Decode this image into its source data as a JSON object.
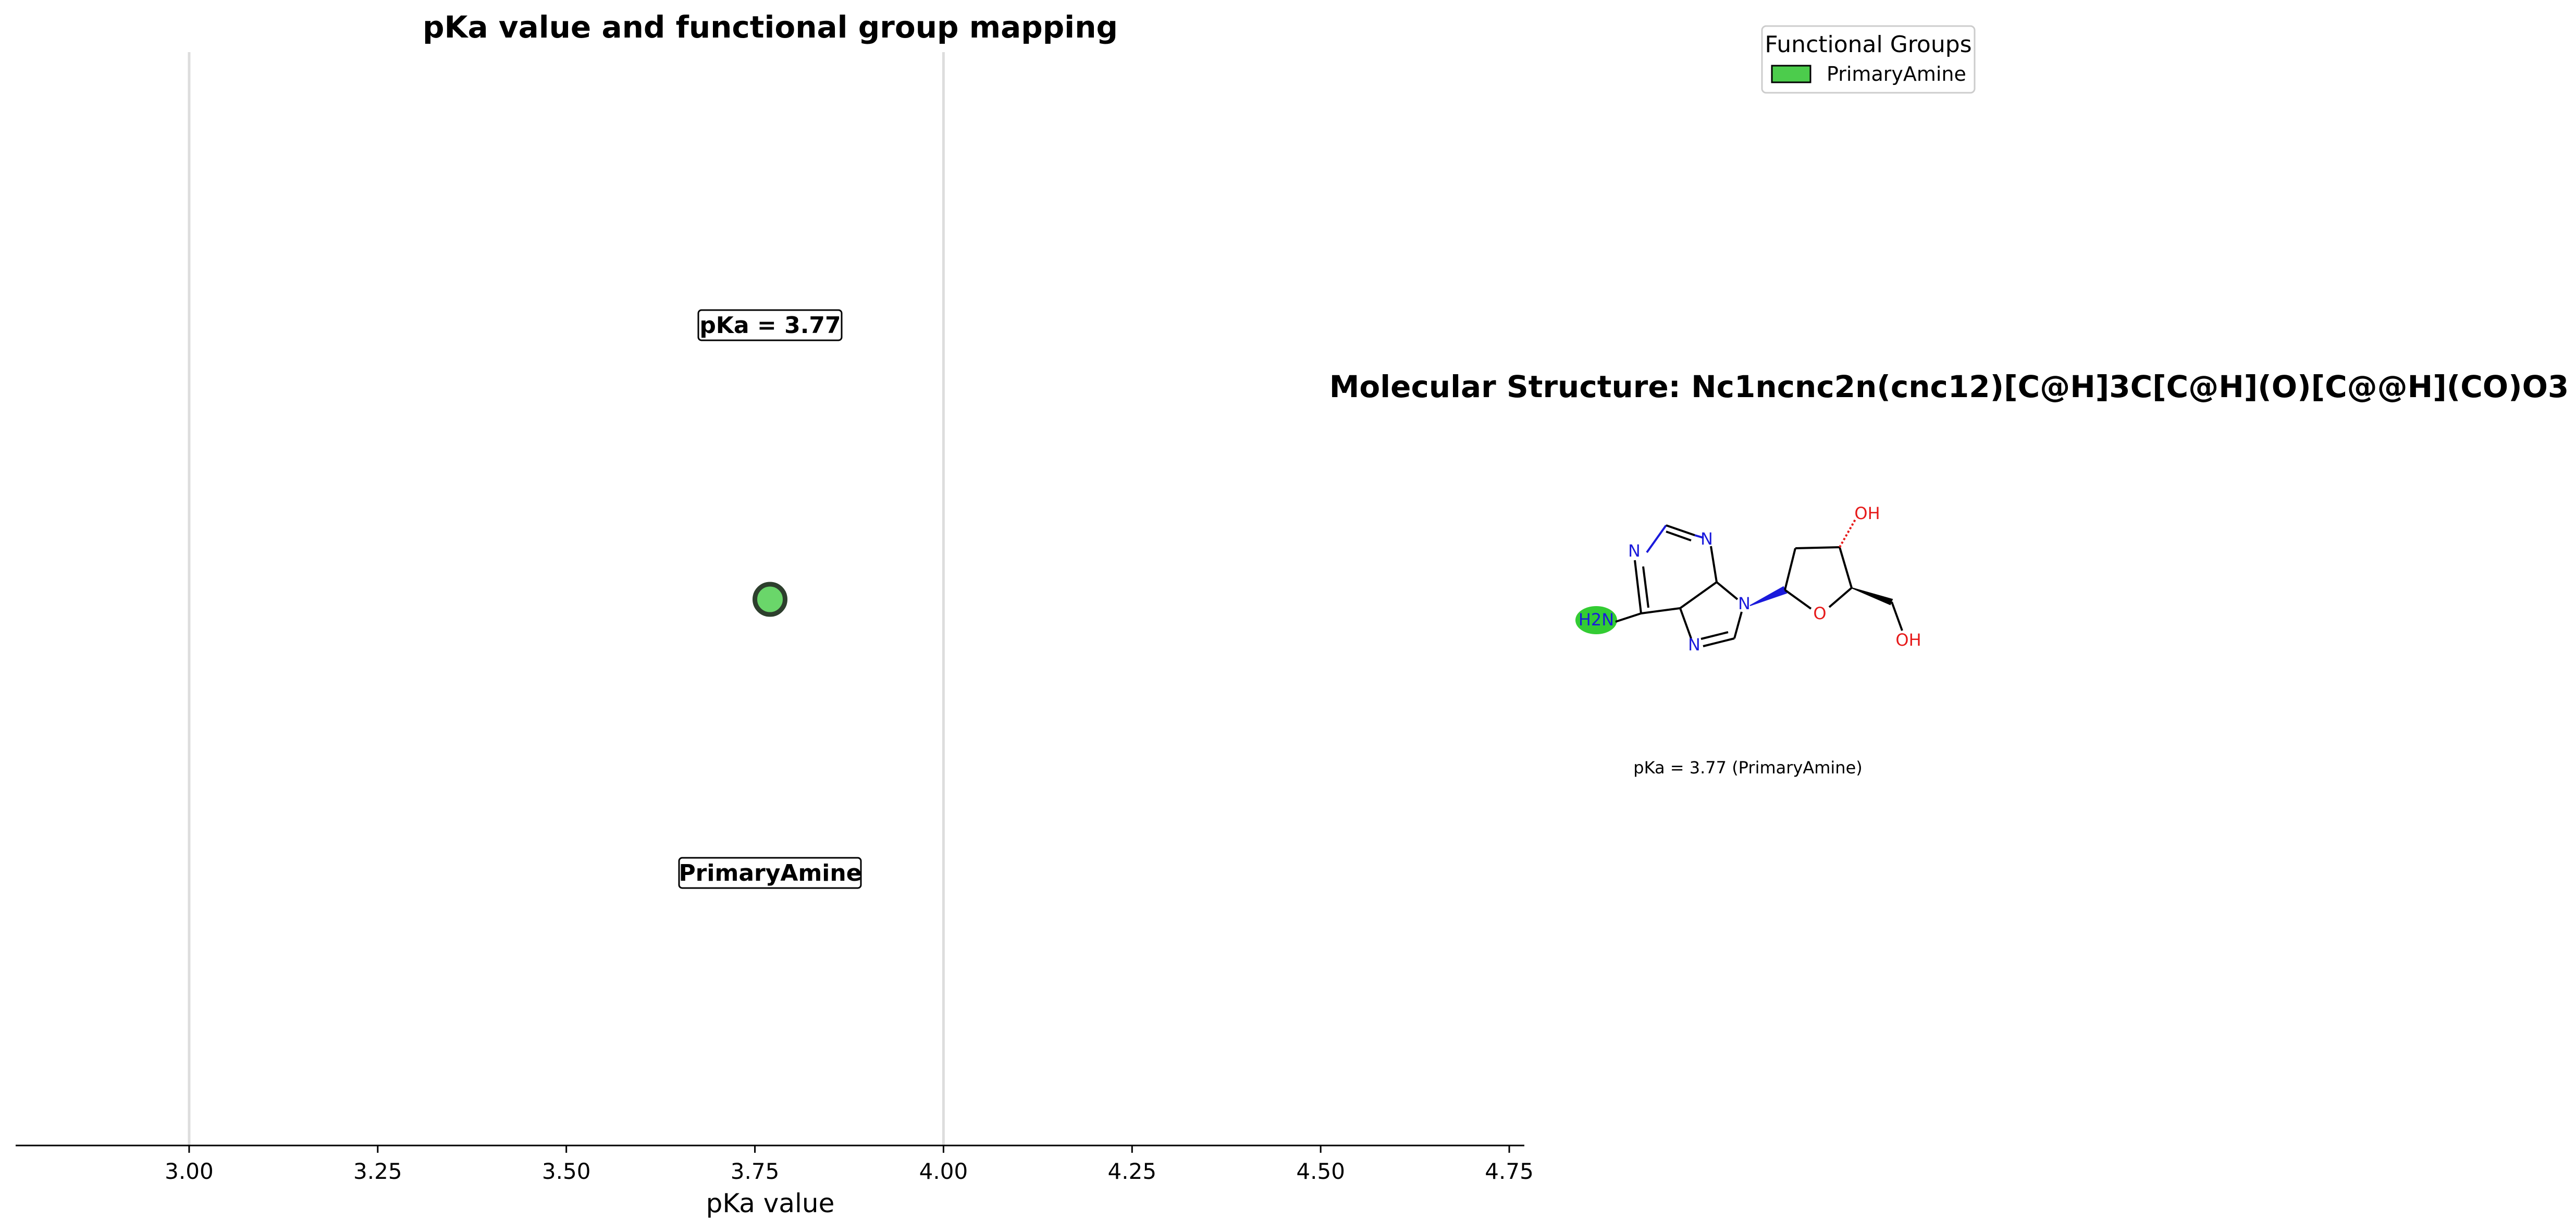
{
  "chart_data": [
    {
      "type": "scatter",
      "title": "pKa value and functional group mapping",
      "xlabel": "pKa value",
      "ylabel": "",
      "xlim": [
        2.77,
        4.77
      ],
      "x_ticks": [
        "3.00",
        "3.25",
        "3.50",
        "3.75",
        "4.00",
        "4.25",
        "4.50",
        "4.75"
      ],
      "x_tick_values": [
        3.0,
        3.25,
        3.5,
        3.75,
        4.0,
        4.25,
        4.5,
        4.75
      ],
      "reference_lines": [
        3.0,
        4.0
      ],
      "points": [
        {
          "x": 3.77,
          "group": "PrimaryAmine",
          "color": "#6ad66a"
        }
      ],
      "annotations": {
        "value_label": "pKa = 3.77",
        "group_label": "PrimaryAmine"
      },
      "legend": {
        "title": "Functional Groups",
        "placement": "top-right",
        "items": [
          {
            "label": "PrimaryAmine",
            "color": "#4ccc4c"
          }
        ]
      }
    }
  ],
  "molecule": {
    "title": "Molecular Structure: Nc1ncnc2n(cnc12)[C@H]3C[C@H](O)[C@@H](CO)O3",
    "caption": "pKa = 3.77 (PrimaryAmine)",
    "highlight_color": "#33cc33",
    "atoms": {
      "n": "N",
      "nh2": "H2N",
      "o": "O",
      "oh": "OH"
    }
  }
}
